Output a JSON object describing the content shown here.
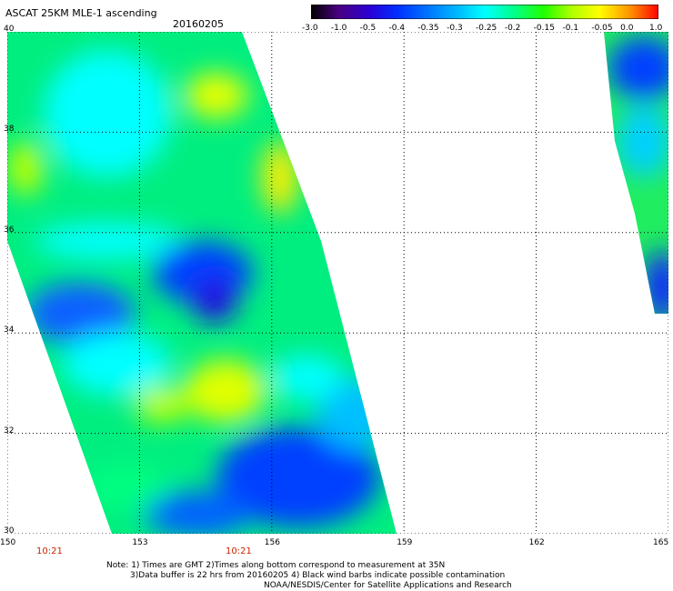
{
  "header": {
    "title": "ASCAT 25KM MLE-1 ascending",
    "date": "20160205"
  },
  "colorbar": {
    "labels": [
      "-3.0",
      "-1.0",
      "-0.5",
      "-0.4",
      "-0.35",
      "-0.3",
      "-0.25",
      "-0.2",
      "-0.15",
      "-0.1",
      "-0.05",
      "0.0",
      "1.0"
    ],
    "colors": [
      "#000000",
      "#4b0082",
      "#2a00d6",
      "#0030ff",
      "#0070ff",
      "#00b8ff",
      "#00ffff",
      "#00ff90",
      "#20ff00",
      "#b0ff00",
      "#ffff00",
      "#ff9000",
      "#ff0000"
    ]
  },
  "map": {
    "lat_labels": [
      "40",
      "38",
      "36",
      "34",
      "32",
      "30"
    ],
    "lon_labels": [
      "150",
      "153",
      "156",
      "159",
      "162",
      "165"
    ],
    "lat_range": [
      30,
      40
    ],
    "lon_range": [
      150,
      165
    ],
    "grid": "dotted"
  },
  "times": [
    "10:21",
    "10:21"
  ],
  "notes": [
    "Note: 1) Times are GMT 2)Times along bottom correspond to measurement at 35N",
    "3)Data buffer is 22 hrs from 20160205 4) Black wind barbs indicate possible contamination",
    "NOAA/NESDIS/Center for Satellite Applications and Research"
  ]
}
